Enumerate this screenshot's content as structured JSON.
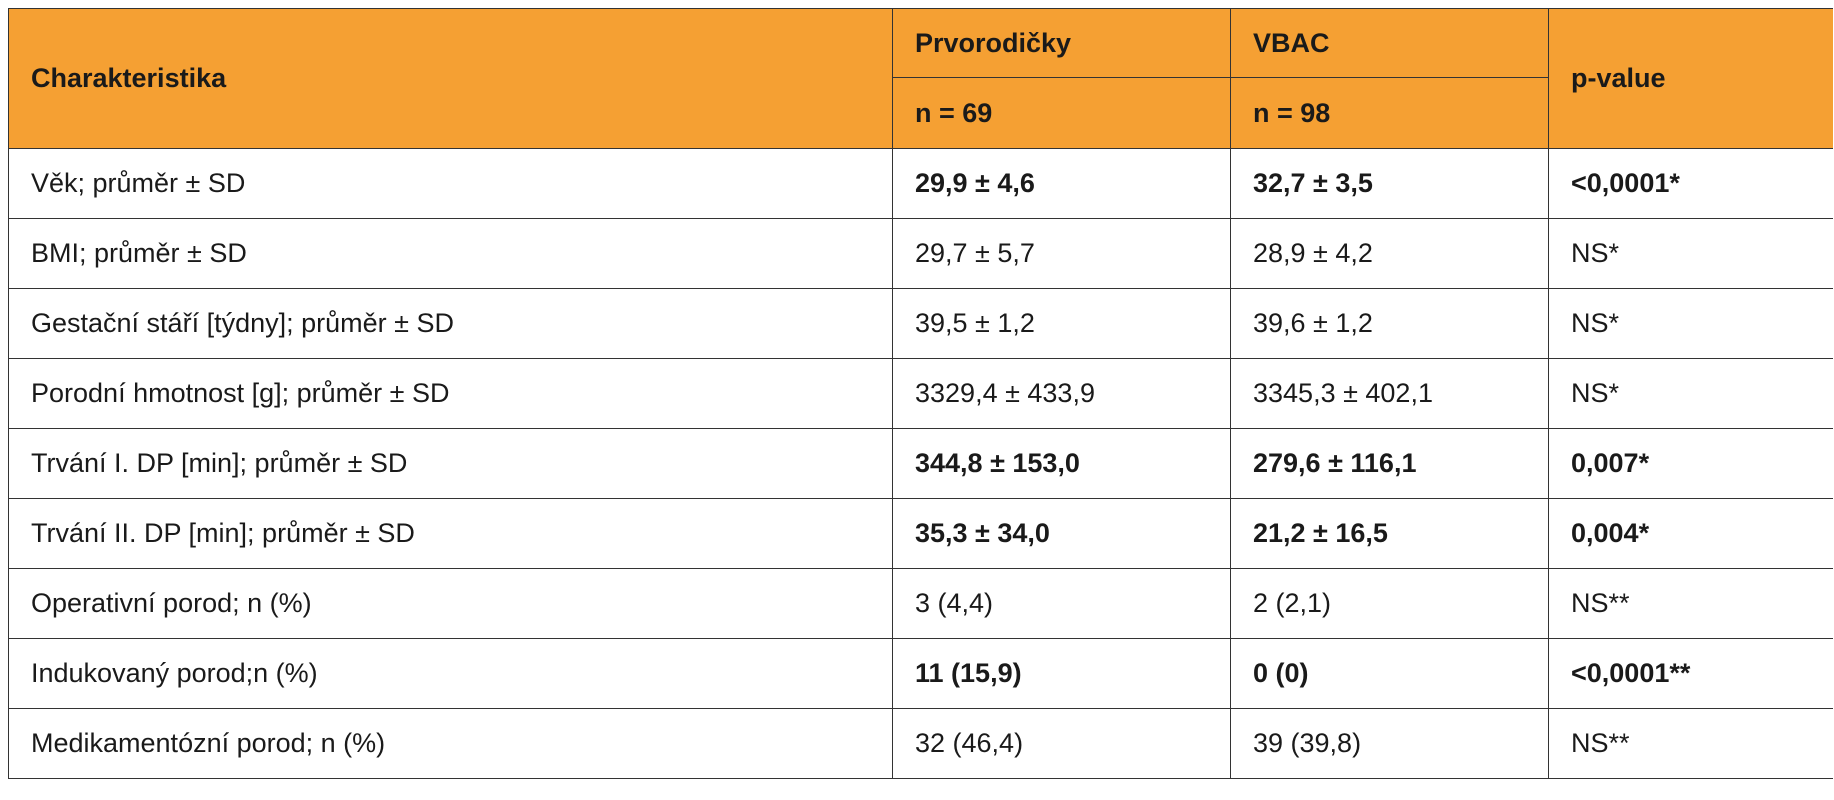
{
  "table": {
    "headers": {
      "characteristic": "Charakteristika",
      "group1_name": "Prvorodičky",
      "group1_n": "n = 69",
      "group2_name": "VBAC",
      "group2_n": "n = 98",
      "pvalue": "p-value"
    },
    "rows": [
      {
        "label": "Věk; průměr ± SD",
        "g1": "29,9 ± 4,6",
        "g2": "32,7 ± 3,5",
        "p": "<0,0001*"
      },
      {
        "label": "BMI; průměr ± SD",
        "g1": "29,7 ± 5,7",
        "g2": "28,9 ± 4,2",
        "p": "NS*"
      },
      {
        "label": "Gestační stáří [týdny]; průměr ± SD",
        "g1": "39,5 ± 1,2",
        "g2": "39,6 ± 1,2",
        "p": "NS*"
      },
      {
        "label": "Porodní hmotnost [g]; průměr ± SD",
        "g1": "3329,4 ± 433,9",
        "g2": "3345,3 ± 402,1",
        "p": "NS*"
      },
      {
        "label": "Trvání I. DP [min]; průměr ± SD",
        "g1": "344,8 ± 153,0",
        "g2": "279,6 ± 116,1",
        "p": "0,007*"
      },
      {
        "label": "Trvání II. DP [min]; průměr  ±  SD",
        "g1": "35,3 ± 34,0",
        "g2": "21,2 ± 16,5",
        "p": "0,004*"
      },
      {
        "label": "Operativní porod; n (%)",
        "g1": "3 (4,4)",
        "g2": "2 (2,1)",
        "p": "NS**"
      },
      {
        "label": "Indukovaný porod;n (%)",
        "g1": "11 (15,9)",
        "g2": "0 (0)",
        "p": "<0,0001**"
      },
      {
        "label": "Medikamentózní porod; n (%)",
        "g1": "32 (46,4)",
        "g2": "39 (39,8)",
        "p": "NS**"
      }
    ]
  }
}
